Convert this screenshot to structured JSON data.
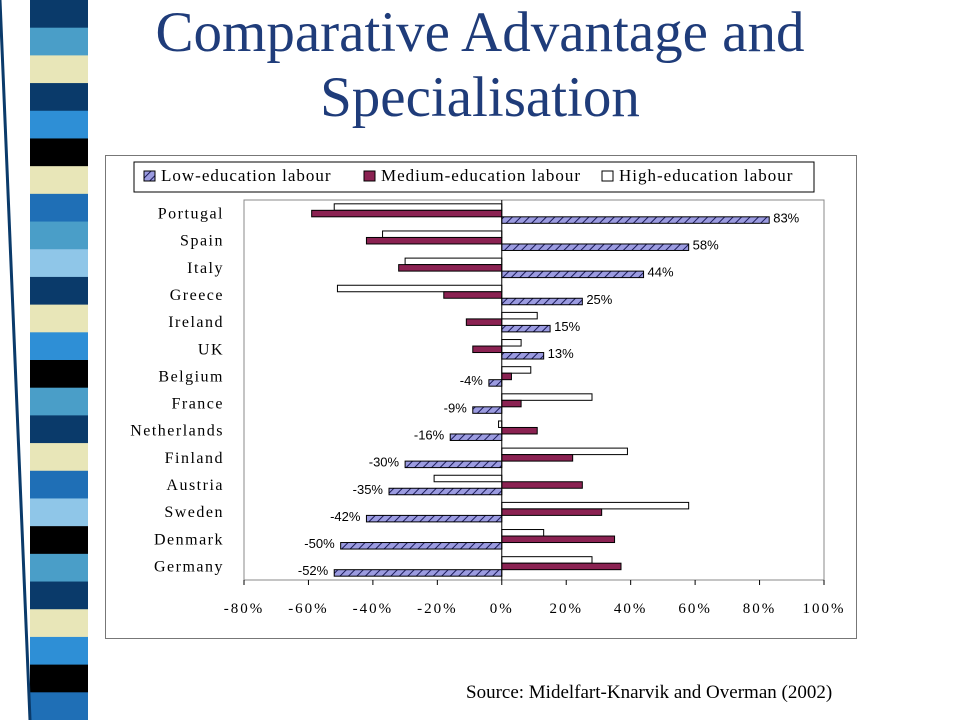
{
  "slide": {
    "title": "Comparative Advantage and Specialisation",
    "source": "Source: Midelfart-Knarvik and Overman (2002)"
  },
  "colors": {
    "stripe": [
      "#0a3a6a",
      "#4a9ec8",
      "#e8e6b8",
      "#0a3a6a",
      "#2e8fd6",
      "#000000",
      "#e8e6b8",
      "#1f6fb6",
      "#4a9ec8",
      "#8fc6e8",
      "#0a3a6a",
      "#e8e6b8",
      "#2e8fd6",
      "#000000",
      "#4a9ec8",
      "#0a3a6a",
      "#e8e6b8",
      "#1f6fb6",
      "#8fc6e8",
      "#000000",
      "#4a9ec8",
      "#0a3a6a",
      "#e8e6b8",
      "#2e8fd6",
      "#000000",
      "#1f6fb6"
    ],
    "low": "#9b9be0",
    "medium": "#8b2252",
    "high": "#ffffff",
    "title": "#1f3c7a"
  },
  "chart_data": {
    "type": "bar",
    "orientation": "horizontal",
    "categories": [
      "Portugal",
      "Spain",
      "Italy",
      "Greece",
      "Ireland",
      "UK",
      "Belgium",
      "France",
      "Netherlands",
      "Finland",
      "Austria",
      "Sweden",
      "Denmark",
      "Germany"
    ],
    "series": [
      {
        "name": "Low-education labour",
        "values": [
          83,
          58,
          44,
          25,
          15,
          13,
          -4,
          -9,
          -16,
          -30,
          -35,
          -42,
          -50,
          -52
        ],
        "pattern": "hatched"
      },
      {
        "name": "Medium-education labour",
        "values": [
          -59,
          -42,
          -32,
          -18,
          -11,
          -9,
          3,
          6,
          11,
          22,
          25,
          31,
          35,
          37
        ]
      },
      {
        "name": "High-education labour",
        "values": [
          -52,
          -37,
          -30,
          -51,
          11,
          6,
          9,
          28,
          -1,
          39,
          -21,
          58,
          13,
          28
        ]
      }
    ],
    "data_labels": [
      "83%",
      "58%",
      "44%",
      "25%",
      "15%",
      "13%",
      "-4%",
      "-9%",
      "-16%",
      "-30%",
      "-35%",
      "-42%",
      "-50%",
      "-52%"
    ],
    "x_ticks": [
      "-80%",
      "-60%",
      "-40%",
      "-20%",
      "0%",
      "20%",
      "40%",
      "60%",
      "80%",
      "100%"
    ],
    "xlim": [
      -80,
      100
    ],
    "legend_position": "top",
    "grid": false
  }
}
